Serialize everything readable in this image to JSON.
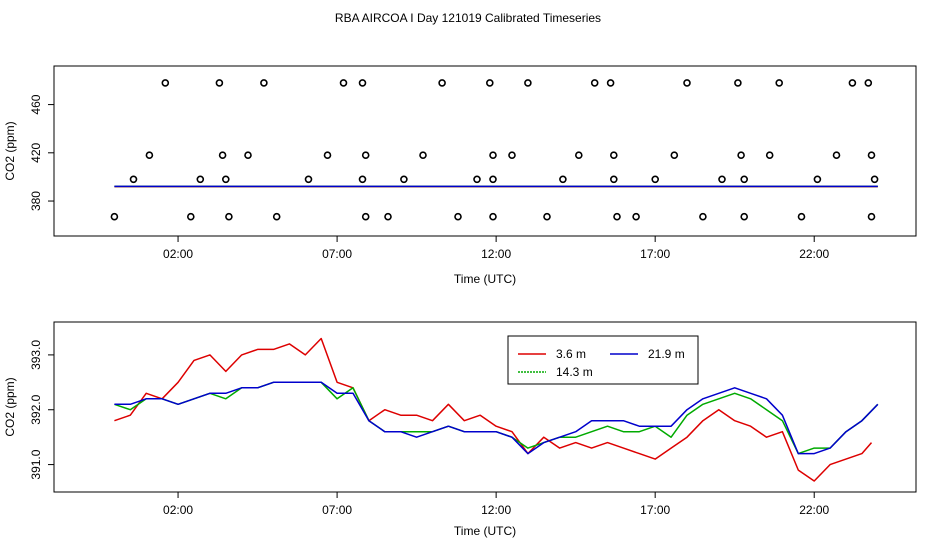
{
  "title": "RBA AIRCOA I  Day 121019  Calibrated Timeseries",
  "chart_data": [
    {
      "type": "scatter+line",
      "xlabel": "Time (UTC)",
      "ylabel": "CO2 (ppm)",
      "xlim": [
        -1.9,
        25.2
      ],
      "ylim": [
        351,
        492
      ],
      "x_ticks": [
        {
          "value": 2,
          "label": "02:00"
        },
        {
          "value": 7,
          "label": "07:00"
        },
        {
          "value": 12,
          "label": "12:00"
        },
        {
          "value": 17,
          "label": "17:00"
        },
        {
          "value": 22,
          "label": "22:00"
        }
      ],
      "y_ticks": [
        {
          "value": 380,
          "label": "380"
        },
        {
          "value": 420,
          "label": "420"
        },
        {
          "value": 460,
          "label": "460"
        }
      ],
      "calibration_points": {
        "x": [
          0.0,
          0.6,
          1.1,
          1.6,
          2.4,
          2.7,
          3.3,
          3.4,
          3.5,
          3.6,
          4.7,
          4.2,
          5.1,
          6.1,
          6.7,
          7.2,
          7.8,
          7.9,
          7.8,
          7.9,
          8.6,
          9.1,
          9.7,
          10.3,
          10.8,
          11.4,
          11.8,
          11.9,
          11.9,
          11.9,
          12.5,
          13.0,
          13.6,
          14.1,
          14.6,
          15.1,
          15.6,
          15.7,
          15.7,
          15.8,
          16.4,
          17.0,
          17.6,
          18.0,
          18.5,
          19.1,
          19.6,
          19.7,
          19.8,
          19.8,
          20.6,
          20.9,
          21.6,
          22.1,
          22.7,
          23.2,
          23.7,
          23.8,
          23.9,
          23.8
        ],
        "y": [
          367,
          398,
          418,
          478,
          367,
          398,
          478,
          418,
          398,
          367,
          478,
          418,
          367,
          398,
          418,
          478,
          478,
          418,
          398,
          367,
          367,
          398,
          418,
          478,
          367,
          398,
          478,
          418,
          398,
          367,
          418,
          478,
          367,
          398,
          418,
          478,
          478,
          418,
          398,
          367,
          367,
          398,
          418,
          478,
          367,
          398,
          478,
          418,
          398,
          367,
          418,
          478,
          367,
          398,
          418,
          478,
          478,
          418,
          398,
          367
        ]
      },
      "series": [
        {
          "name": "3.6 m",
          "color": "#dd0000",
          "x": [
            0.0,
            24.0
          ],
          "y": [
            392.0,
            392.0
          ]
        },
        {
          "name": "14.3 m",
          "color": "#00bb00",
          "x": [
            0.0,
            24.0
          ],
          "y": [
            392.1,
            392.1
          ]
        },
        {
          "name": "21.9 m",
          "color": "#0000cc",
          "x": [
            0.0,
            24.0
          ],
          "y": [
            392.1,
            392.1
          ]
        }
      ]
    },
    {
      "type": "line",
      "xlabel": "Time (UTC)",
      "ylabel": "CO2 (ppm)",
      "xlim": [
        -1.9,
        25.2
      ],
      "ylim": [
        390.5,
        393.6
      ],
      "x_ticks": [
        {
          "value": 2,
          "label": "02:00"
        },
        {
          "value": 7,
          "label": "07:00"
        },
        {
          "value": 12,
          "label": "12:00"
        },
        {
          "value": 17,
          "label": "17:00"
        },
        {
          "value": 22,
          "label": "22:00"
        }
      ],
      "y_ticks": [
        {
          "value": 391.0,
          "label": "391.0"
        },
        {
          "value": 392.0,
          "label": "392.0"
        },
        {
          "value": 393.0,
          "label": "393.0"
        }
      ],
      "legend": {
        "position": "top-center",
        "entries": [
          "3.6 m",
          "21.9 m",
          "14.3 m"
        ]
      },
      "series": [
        {
          "name": "3.6 m",
          "color": "#dd0000",
          "x": [
            0.0,
            0.5,
            1.0,
            1.5,
            2.0,
            2.5,
            3.0,
            3.5,
            4.0,
            4.5,
            5.0,
            5.5,
            6.0,
            6.5,
            7.0,
            7.5,
            8.0,
            8.5,
            9.0,
            9.5,
            10.0,
            10.5,
            11.0,
            11.5,
            12.0,
            12.5,
            13.0,
            13.5,
            14.0,
            14.5,
            15.0,
            15.5,
            16.0,
            16.5,
            17.0,
            17.5,
            18.0,
            18.5,
            19.0,
            19.5,
            20.0,
            20.5,
            21.0,
            21.5,
            22.0,
            22.5,
            23.0,
            23.5,
            23.8
          ],
          "y": [
            391.8,
            391.9,
            392.3,
            392.2,
            392.5,
            392.9,
            393.0,
            392.7,
            393.0,
            393.1,
            393.1,
            393.2,
            393.0,
            393.3,
            392.5,
            392.4,
            391.8,
            392.0,
            391.9,
            391.9,
            391.8,
            392.1,
            391.8,
            391.9,
            391.7,
            391.6,
            391.2,
            391.5,
            391.3,
            391.4,
            391.3,
            391.4,
            391.3,
            391.2,
            391.1,
            391.3,
            391.5,
            391.8,
            392.0,
            391.8,
            391.7,
            391.5,
            391.6,
            390.9,
            390.7,
            391.0,
            391.1,
            391.2,
            391.4
          ]
        },
        {
          "name": "14.3 m",
          "color": "#00aa00",
          "x": [
            0.0,
            0.5,
            1.0,
            1.5,
            2.0,
            2.5,
            3.0,
            3.5,
            4.0,
            4.5,
            5.0,
            5.5,
            6.0,
            6.5,
            7.0,
            7.5,
            8.0,
            8.5,
            9.0,
            9.5,
            10.0,
            10.5,
            11.0,
            11.5,
            12.0,
            12.5,
            13.0,
            13.5,
            14.0,
            14.5,
            15.0,
            15.5,
            16.0,
            16.5,
            17.0,
            17.5,
            18.0,
            18.5,
            19.0,
            19.5,
            20.0,
            20.5,
            21.0,
            21.5,
            22.0,
            22.5,
            23.0,
            23.5,
            24.0
          ],
          "y": [
            392.1,
            392.0,
            392.2,
            392.2,
            392.1,
            392.2,
            392.3,
            392.2,
            392.4,
            392.4,
            392.5,
            392.5,
            392.5,
            392.5,
            392.2,
            392.4,
            391.8,
            391.6,
            391.6,
            391.6,
            391.6,
            391.7,
            391.6,
            391.6,
            391.6,
            391.5,
            391.3,
            391.4,
            391.5,
            391.5,
            391.6,
            391.7,
            391.6,
            391.6,
            391.7,
            391.5,
            391.9,
            392.1,
            392.2,
            392.3,
            392.2,
            392.0,
            391.8,
            391.2,
            391.3,
            391.3,
            391.6,
            391.8,
            392.1
          ]
        },
        {
          "name": "21.9 m",
          "color": "#0000cc",
          "x": [
            0.0,
            0.5,
            1.0,
            1.5,
            2.0,
            2.5,
            3.0,
            3.5,
            4.0,
            4.5,
            5.0,
            5.5,
            6.0,
            6.5,
            7.0,
            7.5,
            8.0,
            8.5,
            9.0,
            9.5,
            10.0,
            10.5,
            11.0,
            11.5,
            12.0,
            12.5,
            13.0,
            13.5,
            14.0,
            14.5,
            15.0,
            15.5,
            16.0,
            16.5,
            17.0,
            17.5,
            18.0,
            18.5,
            19.0,
            19.5,
            20.0,
            20.5,
            21.0,
            21.5,
            22.0,
            22.5,
            23.0,
            23.5,
            24.0
          ],
          "y": [
            392.1,
            392.1,
            392.2,
            392.2,
            392.1,
            392.2,
            392.3,
            392.3,
            392.4,
            392.4,
            392.5,
            392.5,
            392.5,
            392.5,
            392.3,
            392.3,
            391.8,
            391.6,
            391.6,
            391.5,
            391.6,
            391.7,
            391.6,
            391.6,
            391.6,
            391.5,
            391.2,
            391.4,
            391.5,
            391.6,
            391.8,
            391.8,
            391.8,
            391.7,
            391.7,
            391.7,
            392.0,
            392.2,
            392.3,
            392.4,
            392.3,
            392.2,
            391.9,
            391.2,
            391.2,
            391.3,
            391.6,
            391.8,
            392.1
          ]
        }
      ]
    }
  ]
}
